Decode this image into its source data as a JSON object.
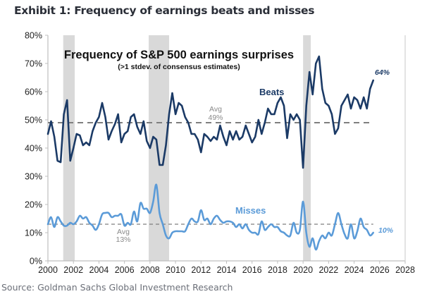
{
  "exhibit_title": "Exhibit 1: Frequency of earnings beats and misses",
  "source": "Source: Goldman Sachs Global Investment Research",
  "chart_data": {
    "type": "line",
    "title": "Frequency of S&P 500 earnings surprises",
    "subtitle": "(>1 stdev. of consensus estimates)",
    "xlabel": "",
    "ylabel": "",
    "xlim": [
      2000,
      2028
    ],
    "ylim": [
      0,
      80
    ],
    "x_ticks": [
      2000,
      2002,
      2004,
      2006,
      2008,
      2010,
      2012,
      2014,
      2016,
      2018,
      2020,
      2022,
      2024,
      2026,
      2028
    ],
    "x_tick_labels": [
      "2000",
      "2002",
      "2004",
      "2006",
      "2008",
      "2010",
      "2012",
      "2014",
      "2016",
      "2018",
      "2020",
      "2022",
      "2024",
      "2026",
      "2028"
    ],
    "y_ticks": [
      0,
      10,
      20,
      30,
      40,
      50,
      60,
      70,
      80
    ],
    "y_tick_labels": [
      "0%",
      "10%",
      "20%",
      "30%",
      "40%",
      "50%",
      "60%",
      "70%",
      "80%"
    ],
    "grid": false,
    "legend": "none",
    "recession_shading": [
      {
        "start": 2001.2,
        "end": 2002.1
      },
      {
        "start": 2007.9,
        "end": 2009.5
      },
      {
        "start": 2020.0,
        "end": 2020.6
      }
    ],
    "series": [
      {
        "name": "Beats",
        "label": "Beats",
        "color": "#1b3a66",
        "average": 49,
        "average_label": [
          "Avg",
          "49%"
        ],
        "end_label": "64%",
        "x": [
          2000.0,
          2000.25,
          2000.5,
          2000.75,
          2001.0,
          2001.25,
          2001.5,
          2001.75,
          2002.0,
          2002.25,
          2002.5,
          2002.75,
          2003.0,
          2003.25,
          2003.5,
          2003.75,
          2004.0,
          2004.25,
          2004.5,
          2004.75,
          2005.0,
          2005.25,
          2005.5,
          2005.75,
          2006.0,
          2006.25,
          2006.5,
          2006.75,
          2007.0,
          2007.25,
          2007.5,
          2007.75,
          2008.0,
          2008.25,
          2008.5,
          2008.75,
          2009.0,
          2009.25,
          2009.5,
          2009.75,
          2010.0,
          2010.25,
          2010.5,
          2010.75,
          2011.0,
          2011.25,
          2011.5,
          2011.75,
          2012.0,
          2012.25,
          2012.5,
          2012.75,
          2013.0,
          2013.25,
          2013.5,
          2013.75,
          2014.0,
          2014.25,
          2014.5,
          2014.75,
          2015.0,
          2015.25,
          2015.5,
          2015.75,
          2016.0,
          2016.25,
          2016.5,
          2016.75,
          2017.0,
          2017.25,
          2017.5,
          2017.75,
          2018.0,
          2018.25,
          2018.5,
          2018.75,
          2019.0,
          2019.25,
          2019.5,
          2019.75,
          2020.0,
          2020.25,
          2020.5,
          2020.75,
          2021.0,
          2021.25,
          2021.5,
          2021.75,
          2022.0,
          2022.25,
          2022.5,
          2022.75,
          2023.0,
          2023.25,
          2023.5,
          2023.75,
          2024.0,
          2024.25,
          2024.5,
          2024.75,
          2025.0,
          2025.25,
          2025.5
        ],
        "values": [
          45,
          49.5,
          44,
          35.5,
          35,
          52,
          57,
          35.5,
          40,
          45,
          44.5,
          41,
          42,
          41,
          46,
          49,
          51,
          56,
          51,
          43,
          46,
          48.5,
          52,
          42,
          45,
          46,
          51,
          52,
          47.5,
          45,
          49.5,
          42.5,
          40,
          44,
          43,
          34,
          34,
          41,
          52,
          59.5,
          52,
          56,
          55,
          51,
          49,
          45,
          45,
          43,
          38.5,
          45,
          44,
          42.5,
          44,
          43,
          48,
          44,
          41,
          46,
          43,
          46,
          43,
          44,
          48,
          45,
          42,
          44,
          50,
          45,
          49,
          54,
          52,
          52,
          56,
          58,
          55,
          43.5,
          52,
          50,
          52,
          50,
          33,
          55,
          67,
          59,
          70,
          72.5,
          61,
          56,
          55,
          52,
          45,
          47,
          55,
          57,
          59,
          54,
          58,
          57,
          54,
          58,
          54,
          61,
          64
        ]
      },
      {
        "name": "Misses",
        "label": "Misses",
        "color": "#5b9bd8",
        "average": 13,
        "average_label": [
          "Avg",
          "13%"
        ],
        "end_label": "10%",
        "x": [
          2000.0,
          2000.25,
          2000.5,
          2000.75,
          2001.0,
          2001.25,
          2001.5,
          2001.75,
          2002.0,
          2002.25,
          2002.5,
          2002.75,
          2003.0,
          2003.25,
          2003.5,
          2003.75,
          2004.0,
          2004.25,
          2004.5,
          2004.75,
          2005.0,
          2005.25,
          2005.5,
          2005.75,
          2006.0,
          2006.25,
          2006.5,
          2006.75,
          2007.0,
          2007.25,
          2007.5,
          2007.75,
          2008.0,
          2008.25,
          2008.5,
          2008.75,
          2009.0,
          2009.25,
          2009.5,
          2009.75,
          2010.0,
          2010.25,
          2010.5,
          2010.75,
          2011.0,
          2011.25,
          2011.5,
          2011.75,
          2012.0,
          2012.25,
          2012.5,
          2012.75,
          2013.0,
          2013.25,
          2013.5,
          2013.75,
          2014.0,
          2014.25,
          2014.5,
          2014.75,
          2015.0,
          2015.25,
          2015.5,
          2015.75,
          2016.0,
          2016.25,
          2016.5,
          2016.75,
          2017.0,
          2017.25,
          2017.5,
          2017.75,
          2018.0,
          2018.25,
          2018.5,
          2018.75,
          2019.0,
          2019.25,
          2019.5,
          2019.75,
          2020.0,
          2020.25,
          2020.5,
          2020.75,
          2021.0,
          2021.25,
          2021.5,
          2021.75,
          2022.0,
          2022.25,
          2022.5,
          2022.75,
          2023.0,
          2023.25,
          2023.5,
          2023.75,
          2024.0,
          2024.25,
          2024.5,
          2024.75,
          2025.0,
          2025.25,
          2025.5
        ],
        "values": [
          13,
          15.5,
          12,
          15.5,
          14,
          12.5,
          12.5,
          13.5,
          13,
          14,
          16,
          15,
          15.5,
          13.5,
          12.5,
          11,
          13,
          16.5,
          17,
          17,
          15.5,
          16,
          16,
          16.5,
          12.5,
          13.5,
          13,
          17.5,
          14,
          20.5,
          18.5,
          18.5,
          17,
          21,
          27,
          17,
          13,
          9,
          8,
          10,
          10.5,
          10.5,
          10.5,
          10.5,
          13,
          15,
          14,
          14,
          18,
          14.5,
          15,
          13,
          15,
          16,
          14.5,
          13.5,
          14,
          14,
          13.5,
          12,
          13,
          11.5,
          13,
          11,
          10,
          10,
          9.5,
          14,
          11,
          12,
          13,
          12,
          12,
          10.5,
          10,
          9,
          9,
          13.5,
          10,
          11,
          21,
          10,
          5,
          8,
          4,
          7,
          9,
          8,
          10,
          9,
          13,
          17,
          13,
          9.5,
          8,
          13,
          8,
          10.5,
          15,
          12,
          11,
          9,
          10
        ]
      }
    ]
  }
}
